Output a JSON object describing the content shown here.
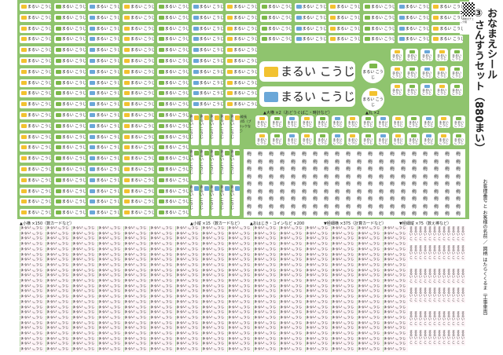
{
  "sticker_name": "まるい こうじ",
  "round_name": "まるい こうじ",
  "tiny_char": "梅",
  "colors": {
    "background_green": "#8fc46e",
    "icon_yellow": "#f2c230",
    "icon_green": "#7cb84a",
    "icon_blue": "#6aa7d8",
    "grid_pink": "#fdf3f6"
  },
  "icons": [
    "excavator-icon",
    "bulldozer-icon",
    "mixer-truck-icon"
  ],
  "sections": {
    "large_horizontal": "▲大横 ×2（おどうぐばこ・時計など）",
    "round": "▲丸 ×2",
    "vertical_long": "▶縦長 ×45（ブロックなど）",
    "small_horizontal": "▲小横 ×150（数カードなど）",
    "small_vertical": "▲小縦 ×15（数カードなど）",
    "ohajiki": "▲おはじき・コインなど ×200",
    "extra_thin_horizontal": "▼極細横 ×375（計算カードなど）",
    "extra_thin_vertical": "▼極細縦 ×75（数え棒など）"
  },
  "side": {
    "title": "おなまえシール",
    "subtitle": "③さんすうセット（880まい）",
    "description": "お客様番号 と お客様の名前 ／ 図柄 はたらくくるま（工事車両）",
    "qr_note": "印刷前のチェック用"
  }
}
